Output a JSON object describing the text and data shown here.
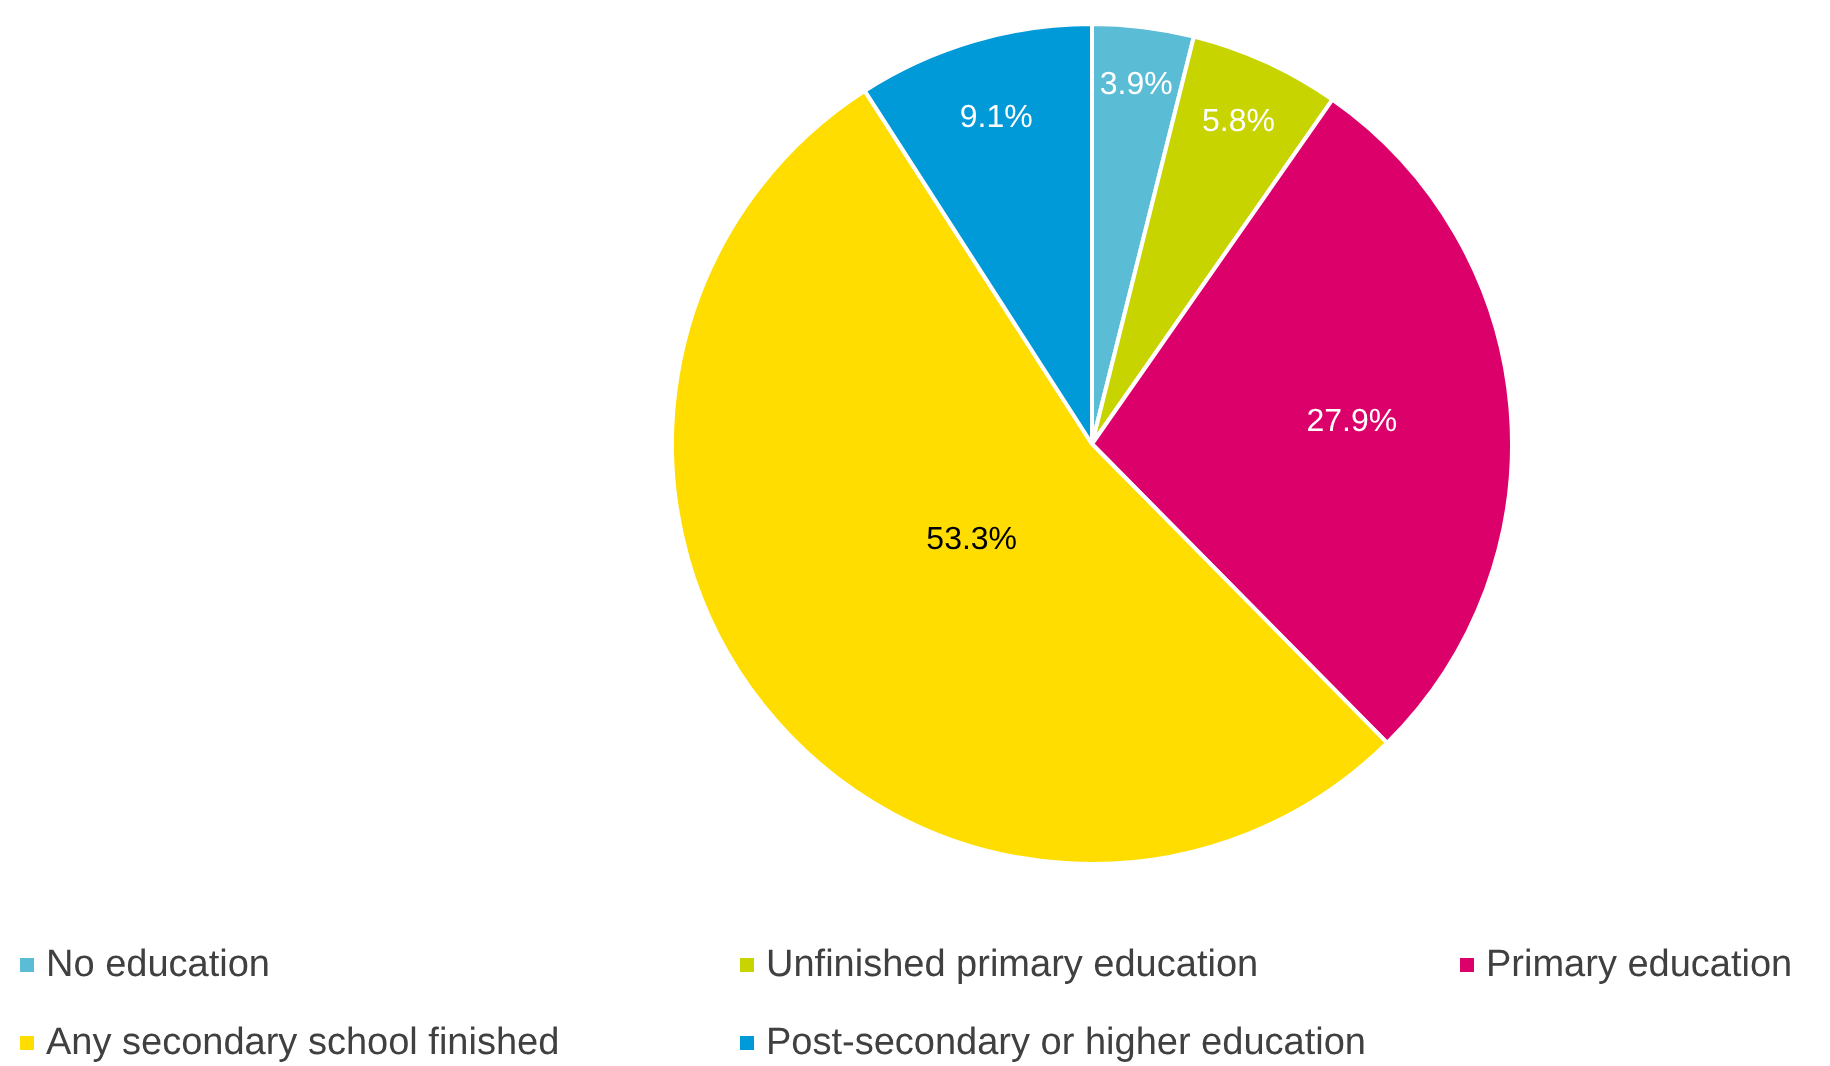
{
  "chart_data": {
    "type": "pie",
    "categories": [
      "No education",
      "Unfinished primary education",
      "Primary education",
      "Any secondary school finished",
      "Post-secondary or higher education"
    ],
    "values": [
      3.9,
      5.8,
      27.9,
      53.3,
      9.1
    ],
    "colors": [
      "#5bbcd6",
      "#c8d400",
      "#dc006b",
      "#ffdd00",
      "#009ad8"
    ],
    "value_labels": [
      "3.9%",
      "5.8%",
      "27.9%",
      "53.3%",
      "9.1%"
    ],
    "legend": "bottom"
  }
}
